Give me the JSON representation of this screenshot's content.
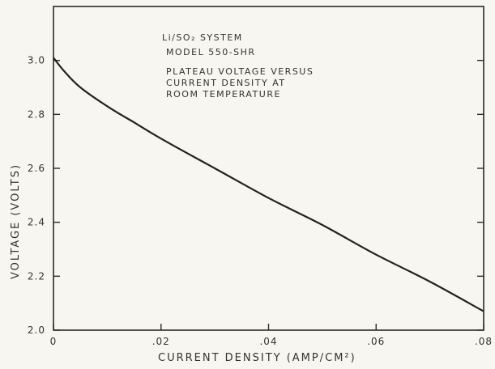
{
  "chart_data": {
    "type": "line",
    "title": "",
    "xlabel": "CURRENT DENSITY (AMP/CM²)",
    "ylabel": "VOLTAGE (VOLTS)",
    "xlim": [
      0,
      0.08
    ],
    "ylim": [
      2.0,
      3.2
    ],
    "x_ticks": [
      0,
      0.02,
      0.04,
      0.06,
      0.08
    ],
    "x_tick_labels": [
      "0",
      ".02",
      ".04",
      ".06",
      ".08"
    ],
    "y_ticks": [
      2.0,
      2.2,
      2.4,
      2.6,
      2.8,
      3.0
    ],
    "y_tick_labels": [
      "2.0",
      "2.2",
      "2.4",
      "2.6",
      "2.8",
      "3.0"
    ],
    "grid": false,
    "annotations": [
      "Li/SO₂ SYSTEM",
      "MODEL 550-SHR",
      "PLATEAU VOLTAGE VERSUS",
      "CURRENT DENSITY AT",
      "ROOM TEMPERATURE"
    ],
    "series": [
      {
        "x": [
          0,
          0.002,
          0.005,
          0.01,
          0.015,
          0.02,
          0.03,
          0.04,
          0.05,
          0.06,
          0.07,
          0.08
        ],
        "values": [
          3.01,
          2.96,
          2.9,
          2.83,
          2.77,
          2.71,
          2.6,
          2.49,
          2.39,
          2.28,
          2.18,
          2.07
        ]
      }
    ]
  },
  "colors": {
    "background": "#f7f6f1",
    "ink": "#2b2b2b"
  }
}
